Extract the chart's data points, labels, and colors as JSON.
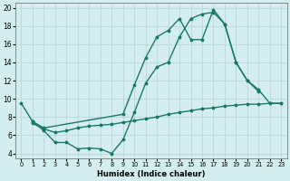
{
  "xlabel": "Humidex (Indice chaleur)",
  "background_color": "#d4eef0",
  "grid_color": "#b8d8dc",
  "line_color": "#1a7868",
  "xlim": [
    -0.5,
    23.5
  ],
  "ylim": [
    3.5,
    20.5
  ],
  "xticks": [
    0,
    1,
    2,
    3,
    4,
    5,
    6,
    7,
    8,
    9,
    10,
    11,
    12,
    13,
    14,
    15,
    16,
    17,
    18,
    19,
    20,
    21,
    22,
    23
  ],
  "yticks": [
    4,
    6,
    8,
    10,
    12,
    14,
    16,
    18,
    20
  ],
  "curve1_x": [
    0,
    1,
    2,
    3,
    4,
    5,
    6,
    7,
    8,
    9,
    10,
    11,
    12,
    13,
    14,
    15,
    16,
    17,
    18,
    19,
    20,
    21
  ],
  "curve1_y": [
    9.5,
    7.5,
    6.5,
    5.2,
    5.2,
    4.5,
    4.6,
    4.5,
    4.0,
    5.5,
    8.5,
    11.7,
    13.5,
    14.0,
    16.8,
    18.8,
    19.3,
    19.5,
    18.2,
    14.0,
    12.0,
    10.8
  ],
  "curve2_x": [
    1,
    2,
    9,
    10,
    11,
    12,
    13,
    14,
    15,
    16,
    17,
    18,
    19,
    20,
    21,
    22,
    23
  ],
  "curve2_y": [
    7.5,
    6.8,
    8.3,
    11.5,
    14.5,
    16.8,
    17.5,
    18.8,
    16.5,
    16.5,
    19.8,
    18.2,
    14.0,
    12.0,
    11.0,
    9.5,
    9.5
  ],
  "curve3_x": [
    1,
    2,
    3,
    4,
    5,
    6,
    7,
    8,
    9,
    10,
    11,
    12,
    13,
    14,
    15,
    16,
    17,
    18,
    19,
    20,
    21,
    22,
    23
  ],
  "curve3_y": [
    7.3,
    6.7,
    6.3,
    6.5,
    6.8,
    7.0,
    7.1,
    7.2,
    7.4,
    7.6,
    7.8,
    8.0,
    8.3,
    8.5,
    8.7,
    8.9,
    9.0,
    9.2,
    9.3,
    9.4,
    9.4,
    9.5,
    9.5
  ]
}
